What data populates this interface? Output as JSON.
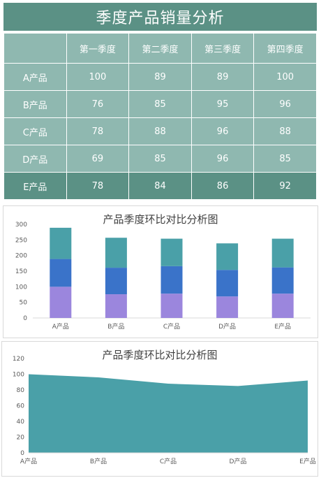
{
  "page": {
    "title": "季度产品销量分析"
  },
  "table": {
    "columns": [
      "",
      "第一季度",
      "第二季度",
      "第三季度",
      "第四季度"
    ],
    "rows": [
      {
        "label": "A产品",
        "values": [
          "100",
          "89",
          "89",
          "100"
        ]
      },
      {
        "label": "B产品",
        "values": [
          "76",
          "85",
          "95",
          "96"
        ]
      },
      {
        "label": "C产品",
        "values": [
          "78",
          "88",
          "96",
          "88"
        ]
      },
      {
        "label": "D产品",
        "values": [
          "69",
          "85",
          "96",
          "85"
        ]
      },
      {
        "label": "E产品",
        "values": [
          "78",
          "84",
          "86",
          "92"
        ]
      }
    ]
  },
  "colors": {
    "header_bg": "#5b9185",
    "cell_bg": "#8fb8b0",
    "series_1": "#9b86dd",
    "series_2": "#3a73c9",
    "series_3": "#4aa0a8",
    "area": "#4aa0a8"
  },
  "chart_data": [
    {
      "type": "bar",
      "stacked": true,
      "title": "产品季度环比对比分析图",
      "categories": [
        "A产品",
        "B产品",
        "C产品",
        "D产品",
        "E产品"
      ],
      "series": [
        {
          "values": [
            100,
            76,
            78,
            69,
            78
          ],
          "color": "#9b86dd"
        },
        {
          "values": [
            89,
            85,
            88,
            85,
            84
          ],
          "color": "#3a73c9"
        },
        {
          "values": [
            100,
            96,
            88,
            85,
            92
          ],
          "color": "#4aa0a8"
        }
      ],
      "ylim": [
        0,
        300
      ],
      "yticks": [
        0,
        50,
        100,
        150,
        200,
        250,
        300
      ],
      "grid": false,
      "legend": "none"
    },
    {
      "type": "area",
      "title": "产品季度环比对比分析图",
      "categories": [
        "A产品",
        "B产品",
        "C产品",
        "D产品",
        "E产品"
      ],
      "series": [
        {
          "values": [
            100,
            96,
            88,
            85,
            92
          ],
          "color": "#4aa0a8"
        }
      ],
      "ylim": [
        0,
        120
      ],
      "yticks": [
        0,
        20,
        40,
        60,
        80,
        100,
        120
      ],
      "grid": false,
      "legend": "none"
    }
  ]
}
